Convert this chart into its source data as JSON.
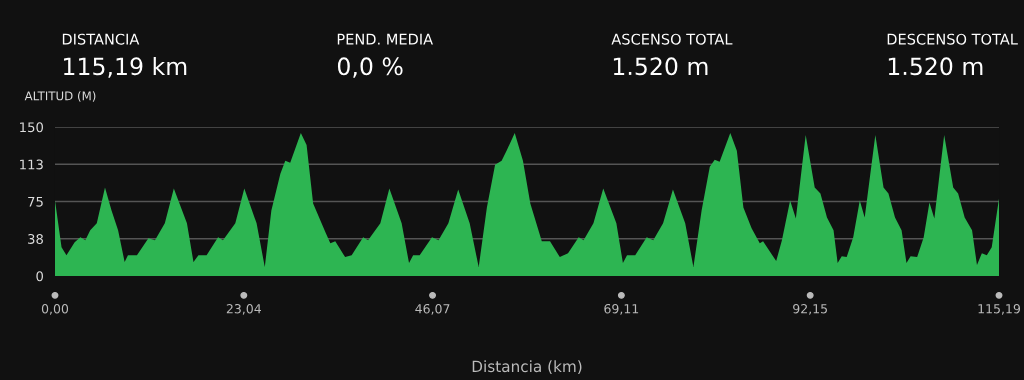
{
  "chart_data": {
    "type": "area",
    "ylabel": "ALTITUD (M)",
    "xlabel": "Distancia (km)",
    "annotations": [
      "DISTANCIA",
      "115,19 km",
      "PEND. MEDIA",
      "0,0 %",
      "ASCENSO TOTAL",
      "1.520 m",
      "DESCENSO TOTAL",
      "1.520 m"
    ],
    "x": [
      0,
      0.8,
      1.4,
      2.4,
      3.1,
      3.7,
      4.3,
      5.1,
      6.1,
      6.9,
      7.7,
      8.5,
      8.9,
      10.0,
      11.4,
      12.2,
      13.4,
      14.5,
      16.1,
      16.9,
      17.5,
      18.5,
      19.9,
      20.5,
      22.0,
      23.1,
      24.6,
      25.6,
      26.4,
      27.5,
      28.1,
      28.7,
      30.0,
      30.7,
      31.5,
      33.0,
      33.6,
      34.2,
      35.4,
      36.2,
      37.6,
      38.2,
      39.7,
      40.8,
      42.3,
      43.2,
      43.7,
      44.5,
      46.0,
      46.8,
      48.0,
      49.2,
      50.6,
      51.7,
      52.7,
      53.7,
      54.5,
      55.1,
      56.1,
      57.1,
      58.0,
      59.4,
      60.4,
      61.6,
      62.6,
      63.9,
      64.5,
      65.7,
      66.9,
      68.5,
      69.3,
      69.8,
      70.8,
      72.2,
      73.0,
      74.2,
      75.4,
      76.9,
      77.9,
      78.9,
      79.9,
      80.5,
      81.1,
      82.4,
      83.2,
      84.0,
      85.0,
      86.0,
      86.4,
      88.0,
      88.7,
      89.7,
      90.4,
      91.6,
      92.7,
      93.4,
      94.2,
      95.0,
      95.5,
      96.0,
      96.6,
      97.4,
      98.2,
      98.8,
      100.1,
      101.1,
      101.7,
      102.5,
      103.3,
      103.9,
      104.4,
      105.2,
      106.0,
      106.7,
      107.3,
      108.5,
      109.6,
      110.2,
      111.0,
      111.9,
      112.5,
      113.1,
      113.7,
      114.3,
      115.19
    ],
    "series": [
      {
        "color": "#2db552",
        "values": [
          76,
          29,
          21,
          34,
          39,
          36,
          46,
          53,
          89,
          66,
          46,
          14,
          21,
          21,
          38,
          36,
          53,
          88,
          53,
          14,
          21,
          21,
          39,
          36,
          53,
          88,
          53,
          9,
          66,
          103,
          116,
          114,
          144,
          132,
          73,
          44,
          33,
          35,
          19,
          21,
          39,
          36,
          53,
          88,
          53,
          13,
          21,
          21,
          39,
          36,
          53,
          87,
          53,
          9,
          69,
          112,
          116,
          126,
          144,
          116,
          73,
          35,
          35,
          19,
          23,
          39,
          36,
          53,
          88,
          53,
          13,
          21,
          21,
          39,
          36,
          53,
          87,
          53,
          9,
          66,
          110,
          117,
          115,
          144,
          126,
          69,
          48,
          33,
          35,
          15,
          36,
          76,
          58,
          142,
          89,
          83,
          59,
          46,
          13,
          20,
          19,
          39,
          76,
          59,
          142,
          89,
          83,
          59,
          46,
          13,
          20,
          19,
          39,
          74,
          58,
          142,
          89,
          83,
          59,
          46,
          11,
          23,
          21,
          29,
          78
        ]
      }
    ],
    "xlim": [
      0,
      115.19
    ],
    "xticks": [
      {
        "value": 0,
        "label": "0,00"
      },
      {
        "value": 23.04,
        "label": "23,04"
      },
      {
        "value": 46.07,
        "label": "46,07"
      },
      {
        "value": 69.11,
        "label": "69,11"
      },
      {
        "value": 92.15,
        "label": "92,15"
      },
      {
        "value": 115.19,
        "label": "115,19"
      }
    ],
    "ylim": [
      0,
      150
    ],
    "yticks": [
      0,
      {
        "value": 37.5,
        "label": "38"
      },
      75,
      {
        "value": 112.5,
        "label": "113"
      },
      150
    ],
    "grid": "y",
    "legend": false
  }
}
